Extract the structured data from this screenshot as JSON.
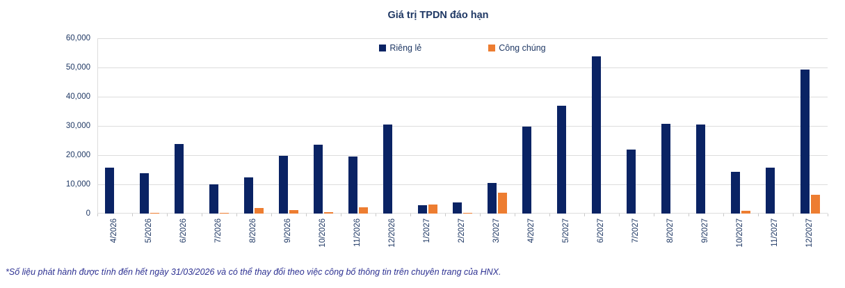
{
  "title": "Giá trị TPDN đáo hạn",
  "footnote": "*Số liệu phát hành được tính đến hết ngày 31/03/2026 và có thể thay đổi theo việc công bố thông tin trên chuyên trang của HNX.",
  "colors": {
    "navy": "#0a2364",
    "orange": "#ed7d31",
    "grid": "#dcdcdc",
    "text_navy": "#1f3864",
    "footnote_blue": "#2d3192"
  },
  "chart_data": {
    "type": "bar",
    "title": "Giá trị TPDN đáo hạn",
    "xlabel": "",
    "ylabel": "",
    "ylim": [
      0,
      60000
    ],
    "grid": true,
    "legend_position": "top-center",
    "yticks": [
      {
        "label": "0",
        "value": 0
      },
      {
        "label": "10,000",
        "value": 10000
      },
      {
        "label": "20,000",
        "value": 20000
      },
      {
        "label": "30,000",
        "value": 30000
      },
      {
        "label": "40,000",
        "value": 40000
      },
      {
        "label": "50,000",
        "value": 50000
      },
      {
        "label": "60,000",
        "value": 60000
      }
    ],
    "categories": [
      "4/2026",
      "5/2026",
      "6/2026",
      "7/2026",
      "8/2026",
      "9/2026",
      "10/2026",
      "11/2026",
      "12/2026",
      "1/2027",
      "2/2027",
      "3/2027",
      "4/2027",
      "5/2027",
      "6/2027",
      "7/2027",
      "8/2027",
      "9/2027",
      "10/2027",
      "11/2027",
      "12/2027"
    ],
    "series": [
      {
        "name": "Riêng lẻ",
        "color": "#0a2364",
        "values": [
          15800,
          13900,
          23900,
          9900,
          12400,
          19700,
          23500,
          19500,
          30400,
          2900,
          3700,
          10400,
          29800,
          37000,
          53700,
          22000,
          30700,
          30500,
          14200,
          15700,
          49300
        ]
      },
      {
        "name": "Công chúng",
        "color": "#ed7d31",
        "values": [
          0,
          300,
          0,
          300,
          2000,
          1300,
          500,
          2100,
          0,
          3100,
          200,
          7100,
          0,
          0,
          0,
          0,
          0,
          0,
          1000,
          0,
          6400
        ]
      }
    ]
  }
}
